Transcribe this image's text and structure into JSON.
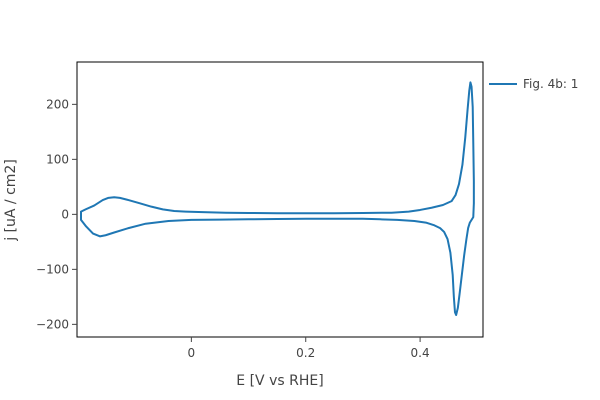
{
  "chart_data": {
    "type": "line",
    "xlabel": "E [V vs RHE]",
    "ylabel": "j [uA / cm2]",
    "xlim": [
      -0.2,
      0.51
    ],
    "ylim": [
      -223,
      277
    ],
    "xticks": [
      0,
      0.2,
      0.4
    ],
    "xtick_labels": [
      "0",
      "0.2",
      "0.4"
    ],
    "yticks": [
      -200,
      -100,
      0,
      100,
      200
    ],
    "ytick_labels": [
      "−200",
      "−100",
      "0",
      "100",
      "200"
    ],
    "grid": false,
    "legend_position": "right",
    "series": [
      {
        "name": "Fig. 4b: 1",
        "color": "#1f77b4",
        "x": [
          -0.193,
          -0.185,
          -0.17,
          -0.155,
          -0.145,
          -0.135,
          -0.125,
          -0.11,
          -0.09,
          -0.07,
          -0.05,
          -0.03,
          -0.01,
          0.02,
          0.06,
          0.1,
          0.15,
          0.2,
          0.25,
          0.3,
          0.35,
          0.38,
          0.4,
          0.42,
          0.44,
          0.455,
          0.462,
          0.468,
          0.474,
          0.479,
          0.483,
          0.486,
          0.488,
          0.49,
          0.492,
          0.493,
          0.494,
          0.494,
          0.493,
          0.49,
          0.487,
          0.484,
          0.481,
          0.477,
          0.473,
          0.469,
          0.466,
          0.463,
          0.461,
          0.459,
          0.457,
          0.453,
          0.448,
          0.442,
          0.435,
          0.425,
          0.41,
          0.39,
          0.36,
          0.33,
          0.3,
          0.25,
          0.2,
          0.15,
          0.1,
          0.05,
          0.0,
          -0.04,
          -0.08,
          -0.11,
          -0.135,
          -0.15,
          -0.16,
          -0.172,
          -0.184,
          -0.193
        ],
        "y": [
          5,
          9,
          16,
          26,
          30,
          31,
          30,
          26,
          20,
          14,
          9,
          6,
          5,
          4,
          3,
          2.5,
          2,
          2,
          2,
          2.5,
          3,
          5,
          8,
          12,
          17,
          24,
          35,
          55,
          90,
          140,
          190,
          225,
          240,
          232,
          195,
          130,
          60,
          20,
          -5,
          -10,
          -15,
          -25,
          -45,
          -75,
          -110,
          -145,
          -170,
          -183,
          -178,
          -150,
          -110,
          -70,
          -45,
          -32,
          -25,
          -20,
          -15,
          -12,
          -10,
          -9,
          -8,
          -8,
          -8,
          -8.5,
          -9,
          -9.5,
          -10,
          -12,
          -17,
          -25,
          -33,
          -38,
          -40,
          -35,
          -22,
          -10
        ]
      }
    ]
  }
}
